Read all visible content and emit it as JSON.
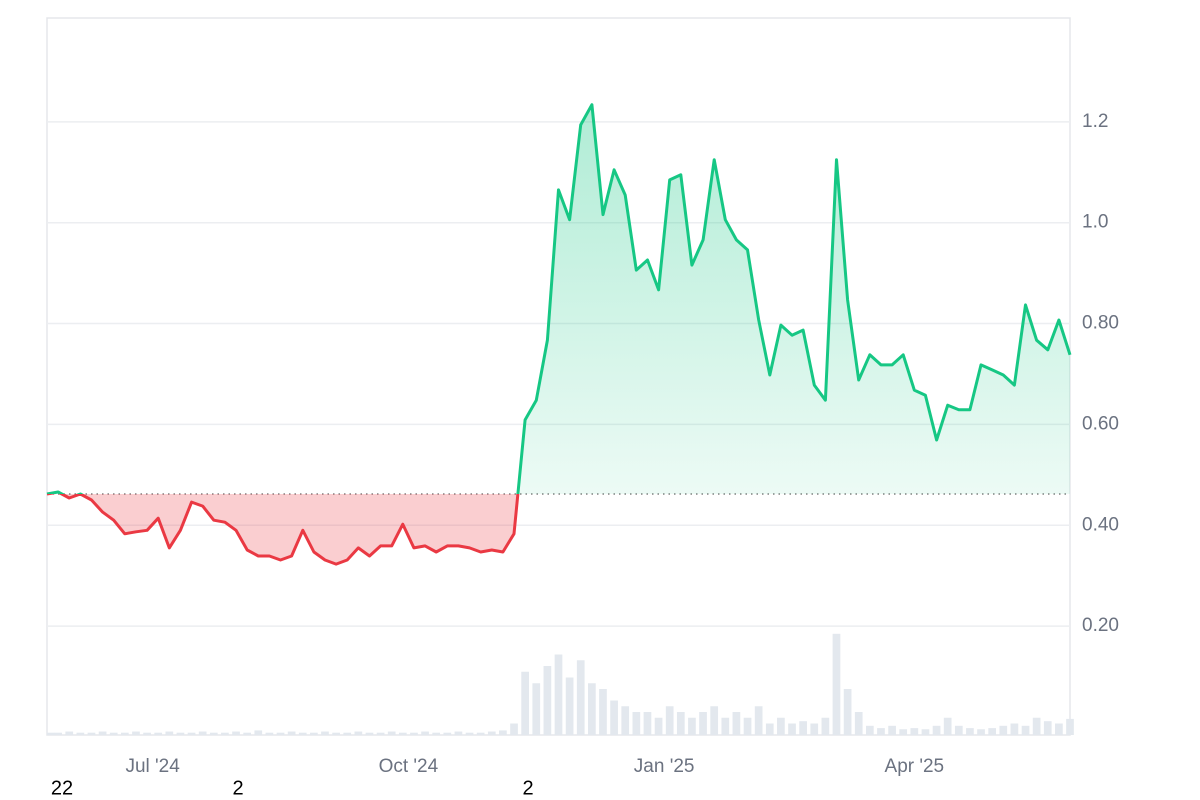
{
  "chart_data": {
    "type": "line",
    "x": [
      "2024-05-24",
      "2024-05-28",
      "2024-06-01",
      "2024-06-05",
      "2024-06-09",
      "2024-06-13",
      "2024-06-17",
      "2024-06-21",
      "2024-06-25",
      "2024-06-29",
      "2024-07-03",
      "2024-07-07",
      "2024-07-11",
      "2024-07-15",
      "2024-07-19",
      "2024-07-23",
      "2024-07-27",
      "2024-07-31",
      "2024-08-04",
      "2024-08-08",
      "2024-08-12",
      "2024-08-16",
      "2024-08-20",
      "2024-08-24",
      "2024-08-28",
      "2024-09-01",
      "2024-09-05",
      "2024-09-09",
      "2024-09-13",
      "2024-09-17",
      "2024-09-21",
      "2024-09-25",
      "2024-09-29",
      "2024-10-03",
      "2024-10-07",
      "2024-10-11",
      "2024-10-15",
      "2024-10-19",
      "2024-10-23",
      "2024-10-27",
      "2024-10-31",
      "2024-11-04",
      "2024-11-08",
      "2024-11-12",
      "2024-11-16",
      "2024-11-20",
      "2024-11-24",
      "2024-11-28",
      "2024-12-02",
      "2024-12-06",
      "2024-12-10",
      "2024-12-14",
      "2024-12-18",
      "2024-12-22",
      "2024-12-26",
      "2024-12-30",
      "2025-01-03",
      "2025-01-07",
      "2025-01-11",
      "2025-01-15",
      "2025-01-19",
      "2025-01-23",
      "2025-01-27",
      "2025-01-31",
      "2025-02-04",
      "2025-02-08",
      "2025-02-12",
      "2025-02-16",
      "2025-02-20",
      "2025-02-24",
      "2025-02-28",
      "2025-03-04",
      "2025-03-08",
      "2025-03-12",
      "2025-03-16",
      "2025-03-20",
      "2025-03-24",
      "2025-03-28",
      "2025-04-01",
      "2025-04-05",
      "2025-04-09",
      "2025-04-13",
      "2025-04-17",
      "2025-04-21",
      "2025-04-25",
      "2025-04-29",
      "2025-05-03",
      "2025-05-07",
      "2025-05-11",
      "2025-05-15",
      "2025-05-19",
      "2025-05-23",
      "2025-05-27"
    ],
    "series": [
      {
        "name": "price",
        "values": [
          0.462,
          0.466,
          0.454,
          0.462,
          0.45,
          0.426,
          0.41,
          0.383,
          0.387,
          0.39,
          0.414,
          0.355,
          0.39,
          0.446,
          0.438,
          0.41,
          0.406,
          0.39,
          0.351,
          0.339,
          0.339,
          0.331,
          0.339,
          0.39,
          0.347,
          0.331,
          0.323,
          0.331,
          0.355,
          0.339,
          0.359,
          0.359,
          0.402,
          0.355,
          0.359,
          0.347,
          0.359,
          0.359,
          0.355,
          0.347,
          0.351,
          0.347,
          0.383,
          0.609,
          0.648,
          0.767,
          1.065,
          1.006,
          1.194,
          1.234,
          1.016,
          1.105,
          1.055,
          0.906,
          0.926,
          0.867,
          1.085,
          1.095,
          0.916,
          0.966,
          1.125,
          1.006,
          0.966,
          0.946,
          0.807,
          0.698,
          0.797,
          0.777,
          0.787,
          0.678,
          0.648,
          1.125,
          0.847,
          0.688,
          0.738,
          0.718,
          0.718,
          0.738,
          0.668,
          0.658,
          0.569,
          0.638,
          0.629,
          0.629,
          0.718,
          0.708,
          0.698,
          0.678,
          0.837,
          0.767,
          0.748,
          0.807,
          0.738
        ]
      },
      {
        "name": "volume",
        "axis": "y2",
        "color": "#e3e8ee",
        "values": [
          2,
          2,
          3,
          2,
          2,
          3,
          2,
          2,
          3,
          2,
          2,
          3,
          2,
          2,
          3,
          2,
          2,
          3,
          2,
          4,
          2,
          2,
          3,
          2,
          2,
          3,
          2,
          2,
          3,
          2,
          2,
          3,
          2,
          2,
          3,
          2,
          2,
          3,
          2,
          2,
          3,
          4,
          10,
          55,
          45,
          60,
          70,
          50,
          65,
          45,
          40,
          30,
          25,
          20,
          20,
          15,
          25,
          20,
          15,
          20,
          25,
          15,
          20,
          15,
          25,
          10,
          15,
          10,
          12,
          10,
          15,
          88,
          40,
          20,
          8,
          6,
          8,
          5,
          6,
          5,
          8,
          15,
          8,
          6,
          5,
          6,
          8,
          10,
          8,
          15,
          12,
          10,
          14
        ]
      }
    ],
    "baseline": 0.462,
    "up_color": "#16c784",
    "down_color": "#ea3943",
    "xlim": [
      "2024-05-24",
      "2025-05-27"
    ],
    "xticks": [
      {
        "value": "2024-07-01",
        "label": "Jul '24"
      },
      {
        "value": "2024-10-01",
        "label": "Oct '24"
      },
      {
        "value": "2025-01-01",
        "label": "Jan '25"
      },
      {
        "value": "2025-04-01",
        "label": "Apr '25"
      }
    ],
    "ylim": [
      -0.016,
      1.406
    ],
    "yticks": [
      {
        "value": 0.2,
        "label": "0.20"
      },
      {
        "value": 0.4,
        "label": "0.40"
      },
      {
        "value": 0.6,
        "label": "0.60"
      },
      {
        "value": 0.8,
        "label": "0.80"
      },
      {
        "value": 1.0,
        "label": "1.0"
      },
      1.2
    ],
    "y2lim": [
      0,
      100
    ],
    "grid": true,
    "annotations": [
      "22",
      "2",
      "2"
    ]
  }
}
